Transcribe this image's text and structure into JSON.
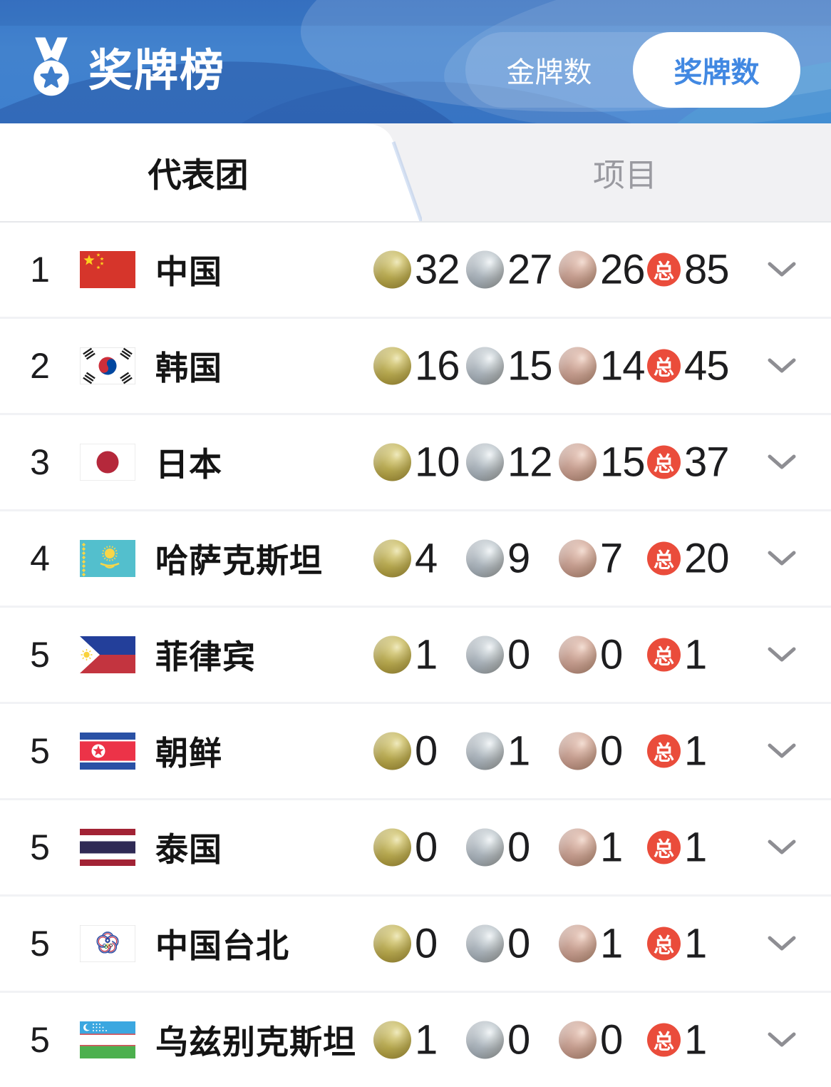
{
  "header": {
    "logo_label": "奖牌榜",
    "toggle": {
      "options": [
        {
          "label": "金牌数",
          "selected": false
        },
        {
          "label": "奖牌数",
          "selected": true
        }
      ]
    }
  },
  "tabs": [
    {
      "label": "代表团",
      "active": true
    },
    {
      "label": "项目",
      "active": false
    }
  ],
  "legend": {
    "total_label": "总"
  },
  "colors": {
    "header_blue": "#3f7ecb",
    "toggle_selected_text": "#4188e2",
    "total_badge_red": "#ea4c3b",
    "gold": "#b5a74e",
    "silver": "#a9b2ba",
    "bronze": "#c49c8e",
    "tab_inactive_bg": "#f1f1f3"
  },
  "table": {
    "rows": [
      {
        "rank": "1",
        "country": "中国",
        "flag": "china",
        "gold": "32",
        "silver": "27",
        "bronze": "26",
        "total": "85"
      },
      {
        "rank": "2",
        "country": "韩国",
        "flag": "south-korea",
        "gold": "16",
        "silver": "15",
        "bronze": "14",
        "total": "45"
      },
      {
        "rank": "3",
        "country": "日本",
        "flag": "japan",
        "gold": "10",
        "silver": "12",
        "bronze": "15",
        "total": "37"
      },
      {
        "rank": "4",
        "country": "哈萨克斯坦",
        "flag": "kazakhstan",
        "gold": "4",
        "silver": "9",
        "bronze": "7",
        "total": "20"
      },
      {
        "rank": "5",
        "country": "菲律宾",
        "flag": "philippines",
        "gold": "1",
        "silver": "0",
        "bronze": "0",
        "total": "1"
      },
      {
        "rank": "5",
        "country": "朝鲜",
        "flag": "north-korea",
        "gold": "0",
        "silver": "1",
        "bronze": "0",
        "total": "1"
      },
      {
        "rank": "5",
        "country": "泰国",
        "flag": "thailand",
        "gold": "0",
        "silver": "0",
        "bronze": "1",
        "total": "1"
      },
      {
        "rank": "5",
        "country": "中国台北",
        "flag": "chinese-taipei",
        "gold": "0",
        "silver": "0",
        "bronze": "1",
        "total": "1"
      },
      {
        "rank": "5",
        "country": "乌兹别克斯坦",
        "flag": "uzbekistan",
        "gold": "1",
        "silver": "0",
        "bronze": "0",
        "total": "1"
      }
    ]
  }
}
